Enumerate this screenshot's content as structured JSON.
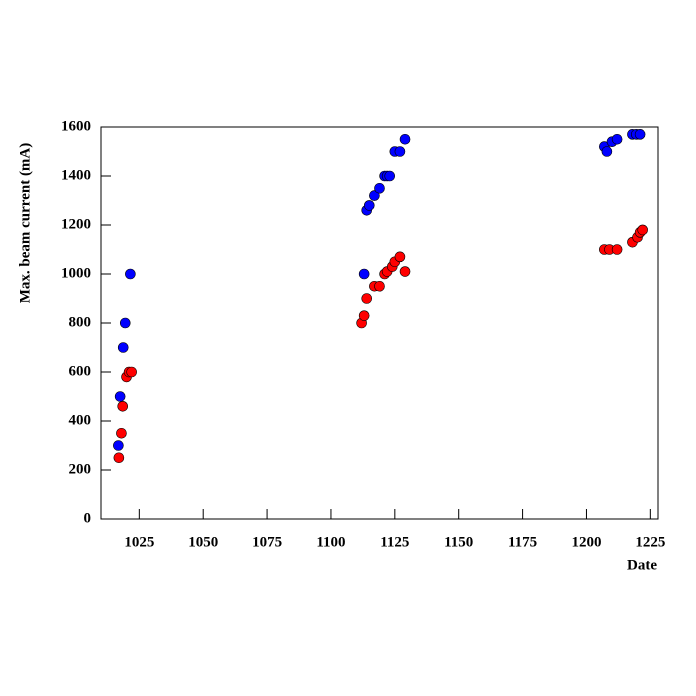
{
  "chart_data": {
    "type": "scatter",
    "y_label": "Max. beam current (mA)",
    "x_label": "Date",
    "xlim": [
      1010,
      1228
    ],
    "ylim": [
      0,
      1600
    ],
    "xticks": [
      1025,
      1050,
      1075,
      1100,
      1125,
      1150,
      1175,
      1200,
      1225
    ],
    "yticks": [
      0,
      200,
      400,
      600,
      800,
      1000,
      1200,
      1400,
      1600
    ],
    "series": [
      {
        "color": "#0000ff",
        "x": [
          1016.8,
          1017.5,
          1018.7,
          1019.5,
          1021.5,
          1113,
          1114,
          1115,
          1117,
          1119,
          1121,
          1122,
          1123,
          1125,
          1127,
          1129,
          1207,
          1208,
          1210,
          1212,
          1218,
          1219.5,
          1221
        ],
        "values": [
          300,
          500,
          700,
          800,
          1000,
          1000,
          1260,
          1280,
          1320,
          1350,
          1400,
          1400,
          1400,
          1500,
          1500,
          1550,
          1520,
          1500,
          1540,
          1550,
          1570,
          1570,
          1570
        ]
      },
      {
        "color": "#ff0000",
        "x": [
          1017,
          1018,
          1018.5,
          1020,
          1021,
          1022,
          1112,
          1113,
          1114,
          1117,
          1119,
          1121,
          1122,
          1124,
          1125,
          1127,
          1129,
          1207,
          1209,
          1212,
          1218,
          1220,
          1221,
          1222
        ],
        "values": [
          250,
          350,
          460,
          580,
          600,
          600,
          800,
          830,
          900,
          950,
          950,
          1000,
          1010,
          1030,
          1050,
          1070,
          1010,
          1100,
          1100,
          1100,
          1130,
          1150,
          1170,
          1180
        ]
      }
    ]
  }
}
